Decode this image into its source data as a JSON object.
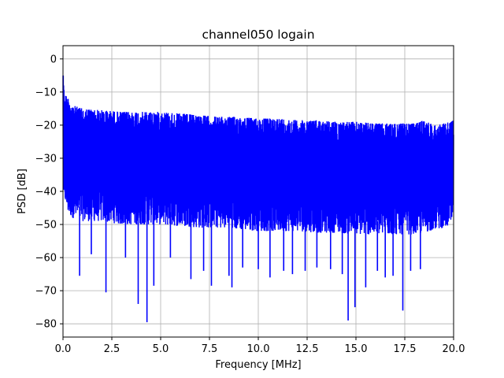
{
  "chart_data": {
    "type": "line",
    "title": "channel050 logain",
    "xlabel": "Frequency [MHz]",
    "ylabel": "PSD [dB]",
    "xlim": [
      0.0,
      20.0
    ],
    "ylim": [
      -84,
      4
    ],
    "xticks": [
      0.0,
      2.5,
      5.0,
      7.5,
      10.0,
      12.5,
      15.0,
      17.5,
      20.0
    ],
    "xtick_labels": [
      "0.0",
      "2.5",
      "5.0",
      "7.5",
      "10.0",
      "12.5",
      "15.0",
      "17.5",
      "20.0"
    ],
    "yticks": [
      0,
      -10,
      -20,
      -30,
      -40,
      -50,
      -60,
      -70,
      -80
    ],
    "ytick_labels": [
      "0",
      "−10",
      "−20",
      "−30",
      "−40",
      "−50",
      "−60",
      "−70",
      "−80"
    ],
    "grid": true,
    "legend": "none",
    "series": [
      {
        "color": "#0000ff",
        "envelope": {
          "x": [
            0.0,
            0.05,
            0.15,
            0.3,
            0.5,
            1.0,
            2.0,
            3.0,
            4.0,
            5.0,
            6.0,
            7.0,
            8.0,
            9.0,
            10.0,
            11.0,
            12.0,
            13.0,
            14.0,
            15.0,
            16.0,
            17.0,
            18.0,
            18.5,
            19.0,
            19.5,
            20.0
          ],
          "upper": [
            -2,
            -9,
            -11,
            -12,
            -14,
            -15,
            -15.5,
            -16,
            -16,
            -16,
            -16.5,
            -17,
            -17.5,
            -17.5,
            -18,
            -18,
            -18.5,
            -18.5,
            -19,
            -19,
            -19.5,
            -19.5,
            -19.5,
            -18.5,
            -20,
            -19.5,
            -18.5
          ],
          "lower": [
            -5,
            -40,
            -45,
            -47,
            -48,
            -49,
            -49,
            -50,
            -50,
            -50,
            -50.5,
            -51,
            -51,
            -51.5,
            -52,
            -52,
            -52,
            -52.5,
            -52.5,
            -53,
            -53,
            -53,
            -53,
            -52.5,
            -51.5,
            -51,
            -50
          ]
        },
        "dips": [
          {
            "x": 0.85,
            "y": -65.5
          },
          {
            "x": 1.45,
            "y": -59
          },
          {
            "x": 2.2,
            "y": -70.5
          },
          {
            "x": 3.2,
            "y": -60
          },
          {
            "x": 3.85,
            "y": -74
          },
          {
            "x": 4.3,
            "y": -79.5
          },
          {
            "x": 4.65,
            "y": -68.5
          },
          {
            "x": 5.5,
            "y": -60
          },
          {
            "x": 6.55,
            "y": -66.5
          },
          {
            "x": 7.2,
            "y": -64
          },
          {
            "x": 7.6,
            "y": -68.5
          },
          {
            "x": 8.5,
            "y": -65.5
          },
          {
            "x": 8.65,
            "y": -69
          },
          {
            "x": 9.2,
            "y": -63
          },
          {
            "x": 10.0,
            "y": -63.5
          },
          {
            "x": 10.6,
            "y": -66
          },
          {
            "x": 11.3,
            "y": -64
          },
          {
            "x": 11.75,
            "y": -65
          },
          {
            "x": 12.4,
            "y": -64
          },
          {
            "x": 13.0,
            "y": -63
          },
          {
            "x": 13.7,
            "y": -63.5
          },
          {
            "x": 14.3,
            "y": -65
          },
          {
            "x": 14.6,
            "y": -79
          },
          {
            "x": 14.95,
            "y": -75
          },
          {
            "x": 15.5,
            "y": -69
          },
          {
            "x": 16.1,
            "y": -64
          },
          {
            "x": 16.5,
            "y": -66
          },
          {
            "x": 16.9,
            "y": -65.5
          },
          {
            "x": 17.4,
            "y": -76
          },
          {
            "x": 17.8,
            "y": -64
          },
          {
            "x": 18.3,
            "y": -63.5
          }
        ]
      }
    ]
  }
}
